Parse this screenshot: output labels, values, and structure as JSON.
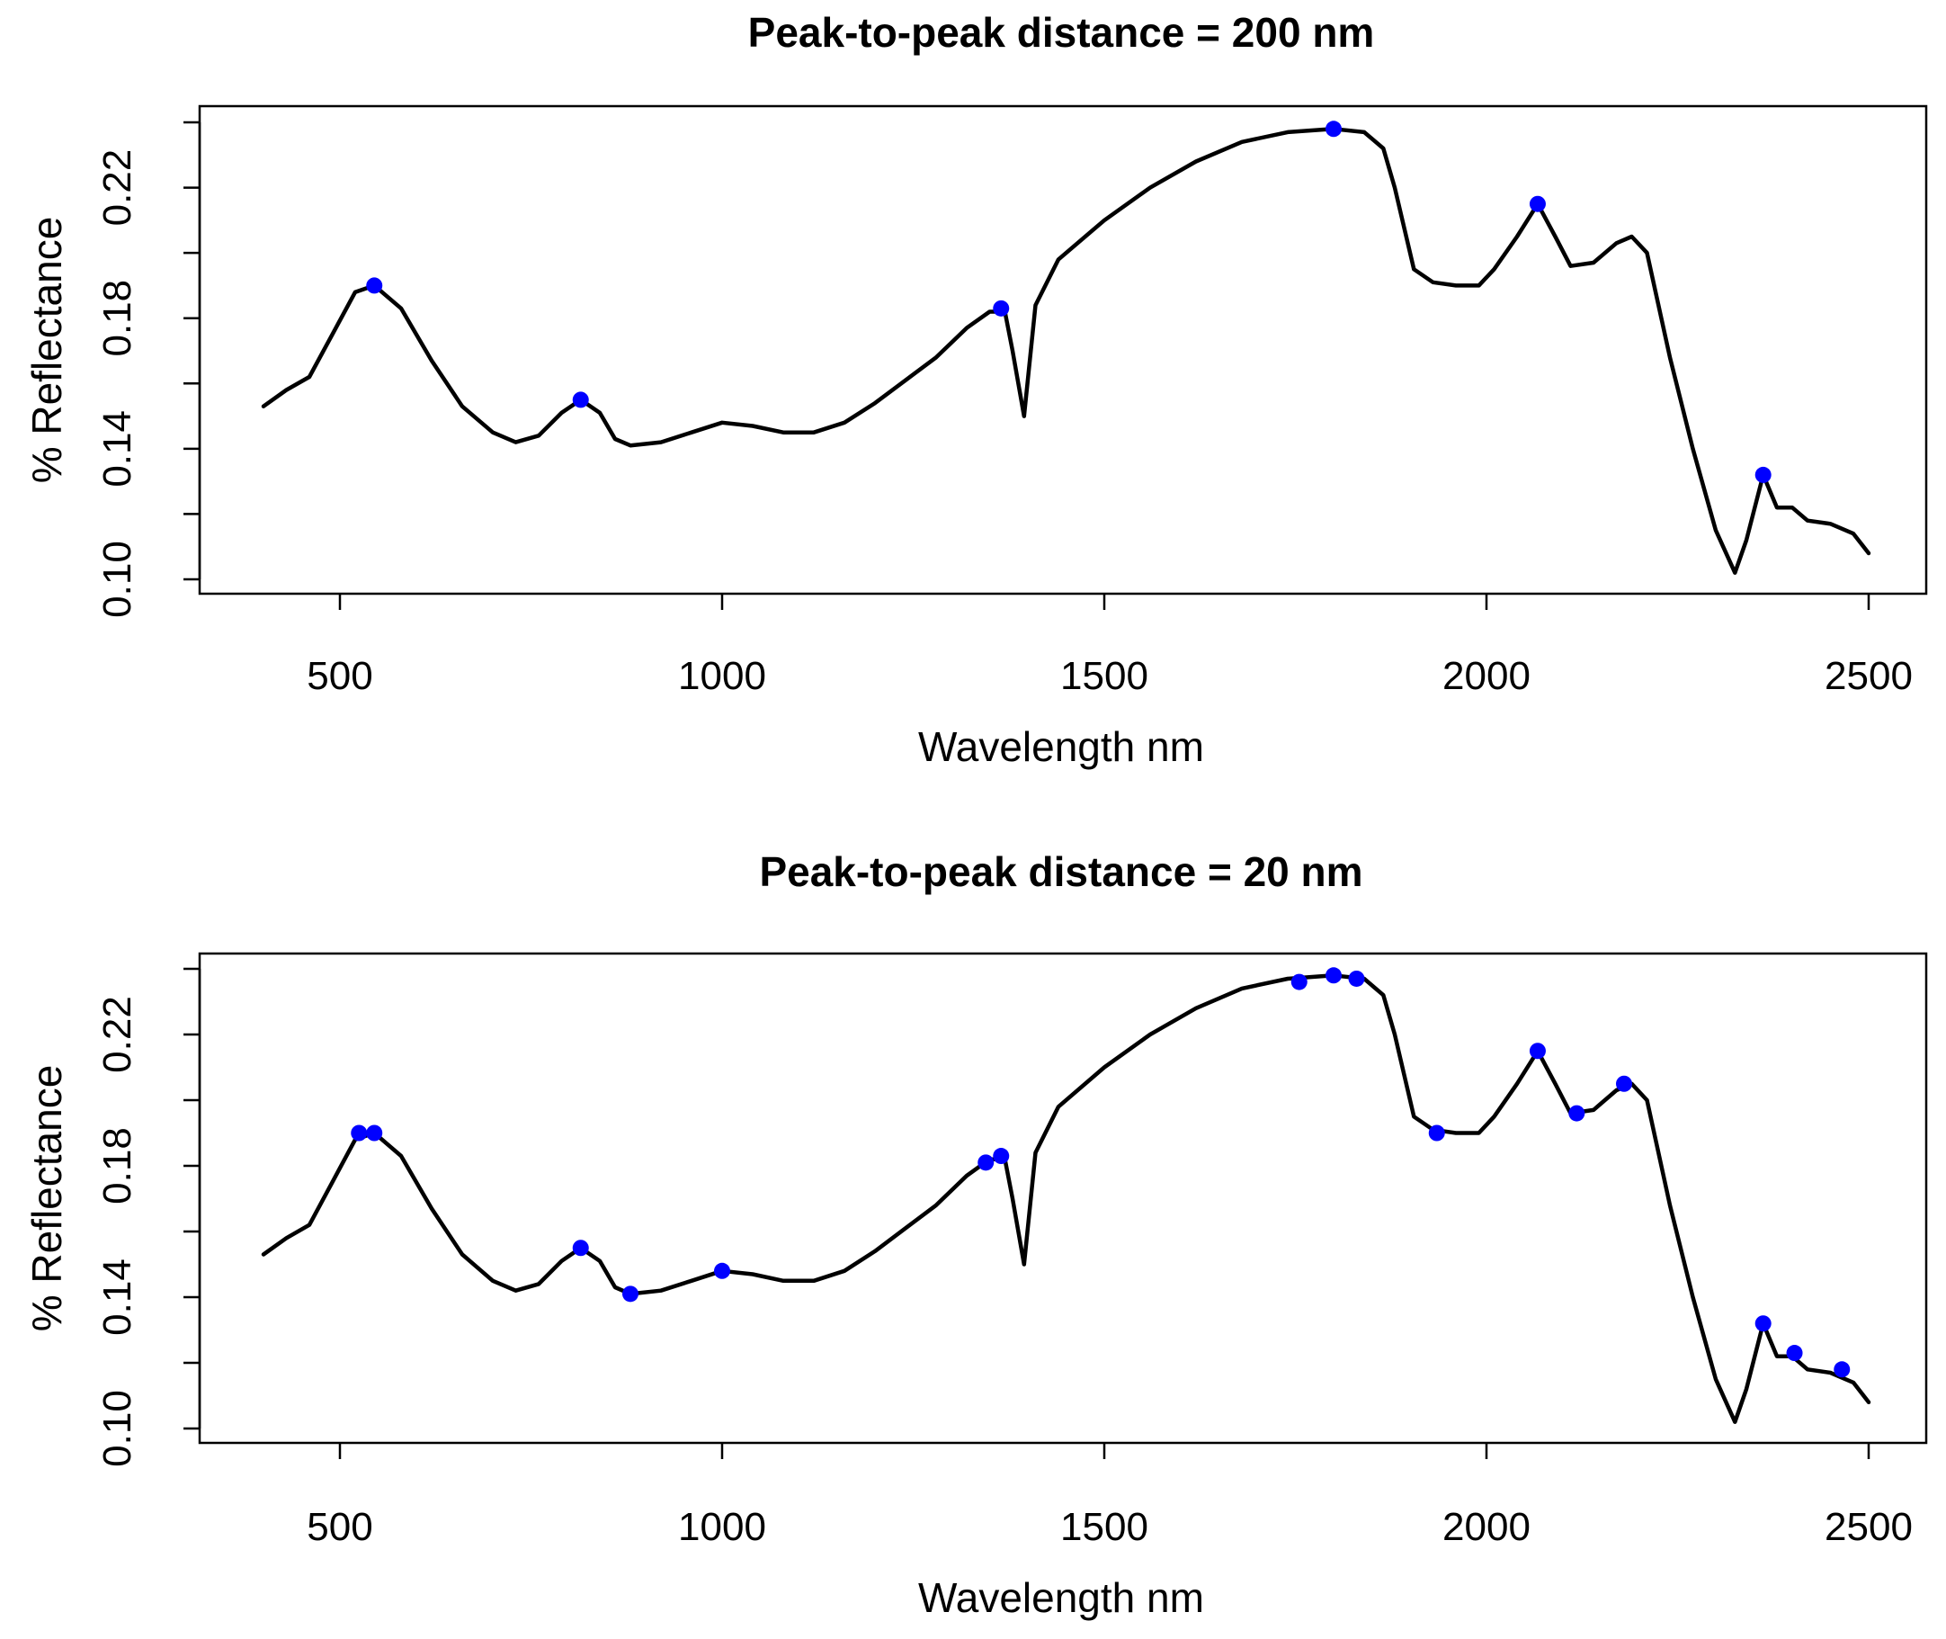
{
  "chart_data": [
    {
      "type": "line",
      "title": "Peak-to-peak distance = 200 nm",
      "xlabel": "Wavelength nm",
      "ylabel": "% Reflectance",
      "xlim": [
        400,
        2500
      ],
      "ylim": [
        0.1,
        0.24
      ],
      "xticks": [
        500,
        1000,
        1500,
        2000,
        2500
      ],
      "xtick_labels": [
        "500",
        "1000",
        "1500",
        "2000",
        "2500"
      ],
      "yticks": [
        0.1,
        0.12,
        0.14,
        0.16,
        0.18,
        0.2,
        0.22,
        0.24
      ],
      "ytick_labels": [
        "0.10",
        "0.14",
        "0.18",
        "0.22"
      ],
      "ytick_label_values": [
        0.1,
        0.14,
        0.18,
        0.22
      ],
      "grid": false,
      "series": [
        {
          "name": "spectrum",
          "color": "#000000",
          "x": [
            400,
            430,
            460,
            490,
            520,
            545,
            580,
            620,
            660,
            700,
            730,
            760,
            790,
            815,
            840,
            860,
            880,
            920,
            960,
            1000,
            1040,
            1080,
            1120,
            1160,
            1200,
            1240,
            1280,
            1320,
            1350,
            1370,
            1380,
            1395,
            1410,
            1440,
            1500,
            1560,
            1620,
            1680,
            1740,
            1800,
            1840,
            1865,
            1880,
            1905,
            1930,
            1960,
            1990,
            2010,
            2040,
            2067,
            2090,
            2110,
            2140,
            2170,
            2190,
            2210,
            2240,
            2270,
            2300,
            2325,
            2340,
            2362,
            2380,
            2400,
            2420,
            2450,
            2480,
            2500
          ],
          "y": [
            0.153,
            0.158,
            0.162,
            0.175,
            0.188,
            0.19,
            0.183,
            0.167,
            0.153,
            0.145,
            0.142,
            0.144,
            0.151,
            0.155,
            0.151,
            0.143,
            0.141,
            0.142,
            0.145,
            0.148,
            0.147,
            0.145,
            0.145,
            0.148,
            0.154,
            0.161,
            0.168,
            0.177,
            0.182,
            0.182,
            0.17,
            0.15,
            0.184,
            0.198,
            0.21,
            0.22,
            0.228,
            0.234,
            0.237,
            0.238,
            0.237,
            0.232,
            0.22,
            0.195,
            0.191,
            0.19,
            0.19,
            0.195,
            0.205,
            0.215,
            0.205,
            0.196,
            0.197,
            0.203,
            0.205,
            0.2,
            0.168,
            0.14,
            0.115,
            0.102,
            0.112,
            0.132,
            0.122,
            0.122,
            0.118,
            0.117,
            0.114,
            0.108
          ]
        }
      ],
      "peaks": {
        "color": "#0000ff",
        "x": [
          545,
          815,
          1365,
          1800,
          2067,
          2362
        ],
        "y": [
          0.19,
          0.155,
          0.183,
          0.238,
          0.215,
          0.132
        ]
      }
    },
    {
      "type": "line",
      "title": "Peak-to-peak distance = 20 nm",
      "xlabel": "Wavelength nm",
      "ylabel": "% Reflectance",
      "xlim": [
        400,
        2500
      ],
      "ylim": [
        0.1,
        0.24
      ],
      "xticks": [
        500,
        1000,
        1500,
        2000,
        2500
      ],
      "xtick_labels": [
        "500",
        "1000",
        "1500",
        "2000",
        "2500"
      ],
      "yticks": [
        0.1,
        0.12,
        0.14,
        0.16,
        0.18,
        0.2,
        0.22,
        0.24
      ],
      "ytick_labels": [
        "0.10",
        "0.14",
        "0.18",
        "0.22"
      ],
      "ytick_label_values": [
        0.1,
        0.14,
        0.18,
        0.22
      ],
      "grid": false,
      "series": [
        {
          "name": "spectrum",
          "color": "#000000",
          "x": [
            400,
            430,
            460,
            490,
            520,
            545,
            580,
            620,
            660,
            700,
            730,
            760,
            790,
            815,
            840,
            860,
            880,
            920,
            960,
            1000,
            1040,
            1080,
            1120,
            1160,
            1200,
            1240,
            1280,
            1320,
            1350,
            1370,
            1380,
            1395,
            1410,
            1440,
            1500,
            1560,
            1620,
            1680,
            1740,
            1800,
            1840,
            1865,
            1880,
            1905,
            1930,
            1960,
            1990,
            2010,
            2040,
            2067,
            2090,
            2110,
            2140,
            2170,
            2190,
            2210,
            2240,
            2270,
            2300,
            2325,
            2340,
            2362,
            2380,
            2400,
            2420,
            2450,
            2480,
            2500
          ],
          "y": [
            0.153,
            0.158,
            0.162,
            0.175,
            0.188,
            0.19,
            0.183,
            0.167,
            0.153,
            0.145,
            0.142,
            0.144,
            0.151,
            0.155,
            0.151,
            0.143,
            0.141,
            0.142,
            0.145,
            0.148,
            0.147,
            0.145,
            0.145,
            0.148,
            0.154,
            0.161,
            0.168,
            0.177,
            0.182,
            0.182,
            0.17,
            0.15,
            0.184,
            0.198,
            0.21,
            0.22,
            0.228,
            0.234,
            0.237,
            0.238,
            0.237,
            0.232,
            0.22,
            0.195,
            0.191,
            0.19,
            0.19,
            0.195,
            0.205,
            0.215,
            0.205,
            0.196,
            0.197,
            0.203,
            0.205,
            0.2,
            0.168,
            0.14,
            0.115,
            0.102,
            0.112,
            0.132,
            0.122,
            0.122,
            0.118,
            0.117,
            0.114,
            0.108
          ]
        }
      ],
      "peaks": {
        "color": "#0000ff",
        "x": [
          525,
          545,
          815,
          880,
          1000,
          1345,
          1365,
          1755,
          1800,
          1830,
          1935,
          2067,
          2118,
          2180,
          2362,
          2403,
          2465
        ],
        "y": [
          0.19,
          0.19,
          0.155,
          0.141,
          0.148,
          0.181,
          0.183,
          0.236,
          0.238,
          0.237,
          0.19,
          0.215,
          0.196,
          0.205,
          0.132,
          0.123,
          0.118
        ]
      }
    }
  ]
}
